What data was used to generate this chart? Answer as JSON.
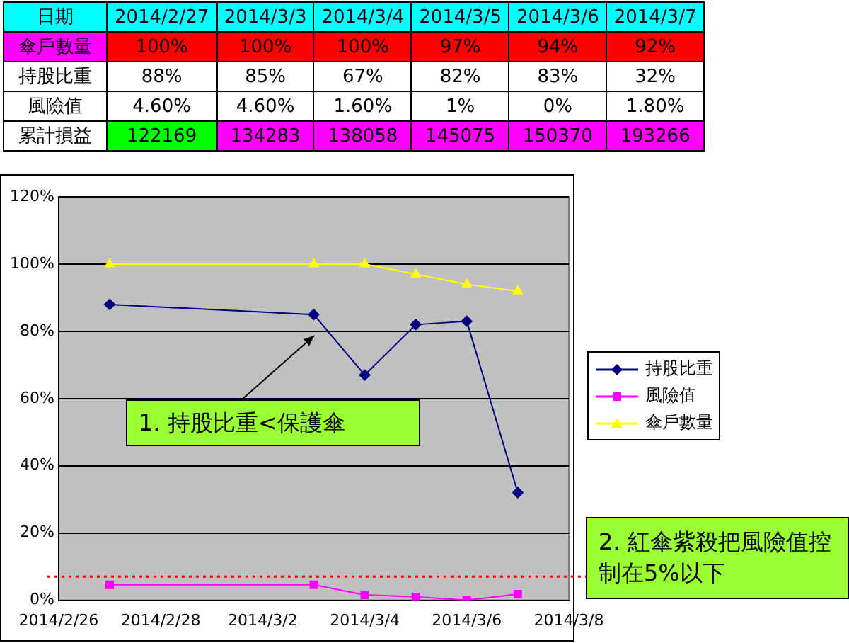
{
  "chart_data": [
    {
      "type": "other",
      "annotations": [
        "日期",
        "2014/2/27",
        "2014/3/3",
        "2014/3/4",
        "2014/3/5",
        "2014/3/6",
        "2014/3/7",
        "傘戶數量",
        "100%",
        "100%",
        "100%",
        "97%",
        "94%",
        "92%",
        "持股比重",
        "88%",
        "85%",
        "67%",
        "82%",
        "83%",
        "32%",
        "風險值",
        "4.60%",
        "4.60%",
        "1.60%",
        "1%",
        "0%",
        "1.80%",
        "累計損益",
        "122169",
        "134283",
        "138058",
        "145075",
        "150370",
        "193266"
      ]
    },
    {
      "type": "line",
      "x": [
        "2014-02-27",
        "2014-03-03",
        "2014-03-04",
        "2014-03-05",
        "2014-03-06",
        "2014-03-07"
      ],
      "series": [
        {
          "name": "持股比重",
          "color": "#000080",
          "marker": "diamond",
          "values": [
            88,
            85,
            67,
            82,
            83,
            32
          ]
        },
        {
          "name": "風險值",
          "color": "#ff00ff",
          "marker": "square",
          "values": [
            4.6,
            4.6,
            1.6,
            1,
            0,
            1.8
          ]
        },
        {
          "name": "傘戶數量",
          "color": "#ffff00",
          "marker": "triangle",
          "values": [
            100,
            100,
            100,
            97,
            94,
            92
          ]
        }
      ],
      "xlim": [
        "2014-02-26",
        "2014-03-08"
      ],
      "xticks": [
        {
          "value": "2014-02-26",
          "label": "2014/2/26"
        },
        {
          "value": "2014-02-28",
          "label": "2014/2/28"
        },
        {
          "value": "2014-03-02",
          "label": "2014/3/2"
        },
        {
          "value": "2014-03-04",
          "label": "2014/3/4"
        },
        {
          "value": "2014-03-06",
          "label": "2014/3/6"
        },
        {
          "value": "2014-03-08",
          "label": "2014/3/8"
        }
      ],
      "ylim": [
        0,
        120
      ],
      "yticks": [
        {
          "value": 0,
          "label": "0%"
        },
        {
          "value": 20,
          "label": "20%"
        },
        {
          "value": 40,
          "label": "40%"
        },
        {
          "value": 60,
          "label": "60%"
        },
        {
          "value": 80,
          "label": "80%"
        },
        {
          "value": 100,
          "label": "100%"
        },
        {
          "value": 120,
          "label": "120%"
        }
      ],
      "grid": "y",
      "legend": "right",
      "ref_lines": [
        {
          "axis": "y",
          "value": 7,
          "color": "#ff0000",
          "line_style": "dotted"
        }
      ],
      "annotations": [
        "1. 持股比重<保護傘",
        "2. 紅傘紫殺把風險值控制在5%以下"
      ]
    }
  ]
}
